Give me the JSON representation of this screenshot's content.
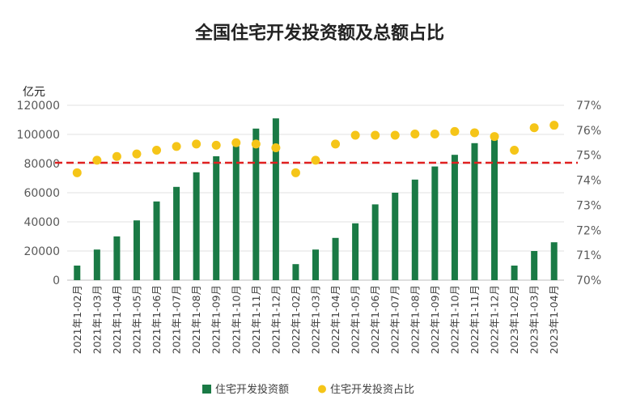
{
  "chart_data": {
    "type": "bar",
    "title": "全国住宅开发投资额及总额占比",
    "y_unit_label": "亿元",
    "categories": [
      "2021年1-02月",
      "2021年1-03月",
      "2021年1-04月",
      "2021年1-05月",
      "2021年1-06月",
      "2021年1-07月",
      "2021年1-08月",
      "2021年1-09月",
      "2021年1-10月",
      "2021年1-11月",
      "2021年1-12月",
      "2022年1-02月",
      "2022年1-03月",
      "2022年1-04月",
      "2022年1-05月",
      "2022年1-06月",
      "2022年1-07月",
      "2022年1-08月",
      "2022年1-09月",
      "2022年1-10月",
      "2022年1-11月",
      "2022年1-12月",
      "2023年1-02月",
      "2023年1-03月",
      "2023年1-04月"
    ],
    "series": [
      {
        "name": "住宅开发投资额",
        "type": "bar",
        "axis": "left",
        "color": "#1a7a45",
        "values": [
          10000,
          21000,
          30000,
          41000,
          54000,
          64000,
          74000,
          85000,
          92000,
          104000,
          111000,
          11000,
          21000,
          29000,
          39000,
          52000,
          60000,
          69000,
          78000,
          86000,
          94000,
          98000,
          10000,
          20000,
          26000
        ]
      },
      {
        "name": "住宅开发投资占比",
        "type": "scatter",
        "axis": "right",
        "color": "#f5c518",
        "values": [
          74.3,
          74.8,
          74.95,
          75.05,
          75.2,
          75.35,
          75.45,
          75.4,
          75.5,
          75.45,
          75.3,
          74.3,
          74.8,
          75.45,
          75.8,
          75.8,
          75.8,
          75.85,
          75.85,
          75.95,
          75.9,
          75.75,
          75.2,
          76.1,
          76.2
        ]
      }
    ],
    "y_left": {
      "min": 0,
      "max": 120000,
      "ticks": [
        "120000",
        "100000",
        "80000",
        "60000",
        "40000",
        "20000",
        "0"
      ]
    },
    "y_right": {
      "min": 70,
      "max": 77,
      "ticks": [
        "77%",
        "76%",
        "75%",
        "74%",
        "73%",
        "72%",
        "71%",
        "70%"
      ]
    },
    "reference_line": {
      "axis": "right",
      "value": 74.7,
      "color": "#e02020",
      "style": "dashed"
    },
    "legend_position": "bottom",
    "grid": "horizontal"
  }
}
